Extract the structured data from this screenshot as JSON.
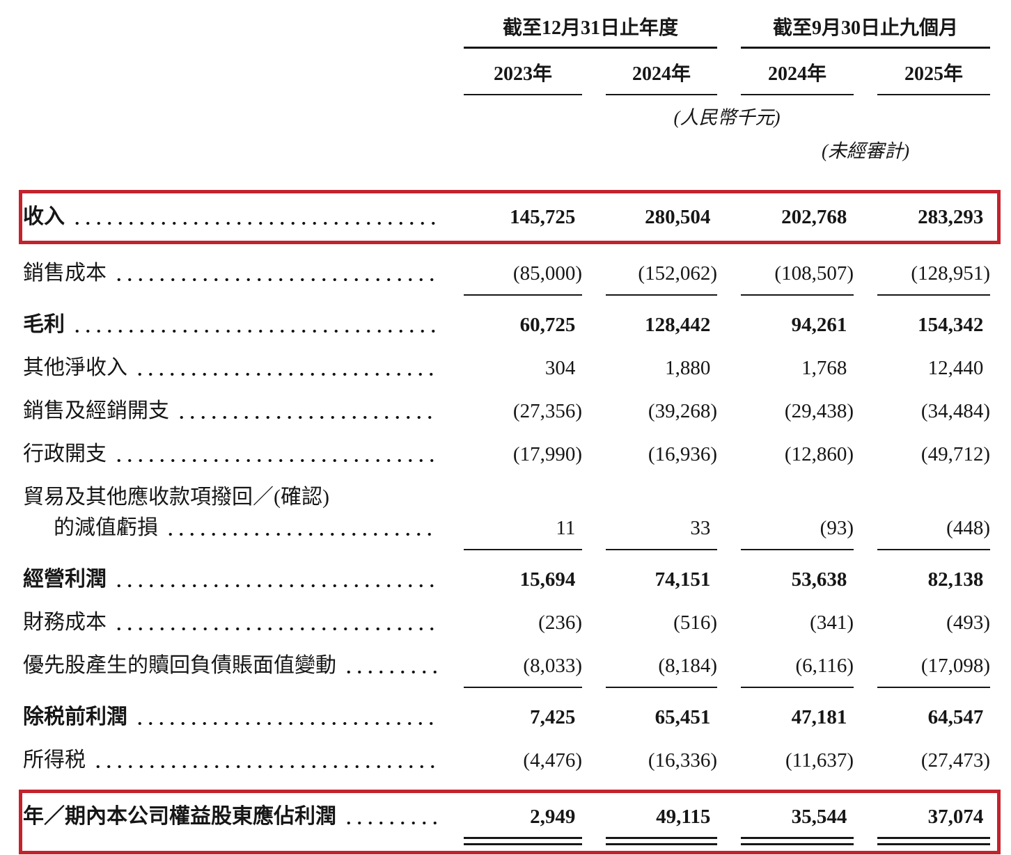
{
  "header": {
    "col_groups": [
      {
        "label": "截至12月31日止年度",
        "cols": [
          "2023年",
          "2024年"
        ]
      },
      {
        "label": "截至9月30日止九個月",
        "cols": [
          "2024年",
          "2025年"
        ]
      }
    ],
    "unit_note": "(人民幣千元)",
    "unaudited_note": "(未經審計)"
  },
  "rows": [
    {
      "label": "收入",
      "bold": true,
      "highlighted": true,
      "values": [
        "145,725",
        "280,504",
        "202,768",
        "283,293"
      ]
    },
    {
      "label": "銷售成本",
      "bold": false,
      "rule_below": true,
      "values": [
        "(85,000)",
        "(152,062)",
        "(108,507)",
        "(128,951)"
      ]
    },
    {
      "label": "毛利",
      "bold": true,
      "values": [
        "60,725",
        "128,442",
        "94,261",
        "154,342"
      ]
    },
    {
      "label": "其他淨收入",
      "bold": false,
      "values": [
        "304",
        "1,880",
        "1,768",
        "12,440"
      ]
    },
    {
      "label": "銷售及經銷開支",
      "bold": false,
      "values": [
        "(27,356)",
        "(39,268)",
        "(29,438)",
        "(34,484)"
      ]
    },
    {
      "label": "行政開支",
      "bold": false,
      "values": [
        "(17,990)",
        "(16,936)",
        "(12,860)",
        "(49,712)"
      ]
    },
    {
      "label_line1": "貿易及其他應收款項撥回／(確認)",
      "label_line2": "的減值虧損",
      "bold": false,
      "rule_below": true,
      "values": [
        "11",
        "33",
        "(93)",
        "(448)"
      ]
    },
    {
      "label": "經營利潤",
      "bold": true,
      "values": [
        "15,694",
        "74,151",
        "53,638",
        "82,138"
      ]
    },
    {
      "label": "財務成本",
      "bold": false,
      "values": [
        "(236)",
        "(516)",
        "(341)",
        "(493)"
      ]
    },
    {
      "label": "優先股產生的贖回負債賬面值變動",
      "bold": false,
      "rule_below": true,
      "values": [
        "(8,033)",
        "(8,184)",
        "(6,116)",
        "(17,098)"
      ]
    },
    {
      "label": "除税前利潤",
      "bold": true,
      "values": [
        "7,425",
        "65,451",
        "47,181",
        "64,547"
      ]
    },
    {
      "label": "所得税",
      "bold": false,
      "values": [
        "(4,476)",
        "(16,336)",
        "(11,637)",
        "(27,473)"
      ]
    },
    {
      "label": "年／期內本公司權益股東應佔利潤",
      "bold": true,
      "highlighted": true,
      "double_rule_below": true,
      "values": [
        "2,949",
        "49,115",
        "35,544",
        "37,074"
      ]
    }
  ],
  "colors": {
    "highlight_border": "#c2232d",
    "text": "#161616"
  }
}
